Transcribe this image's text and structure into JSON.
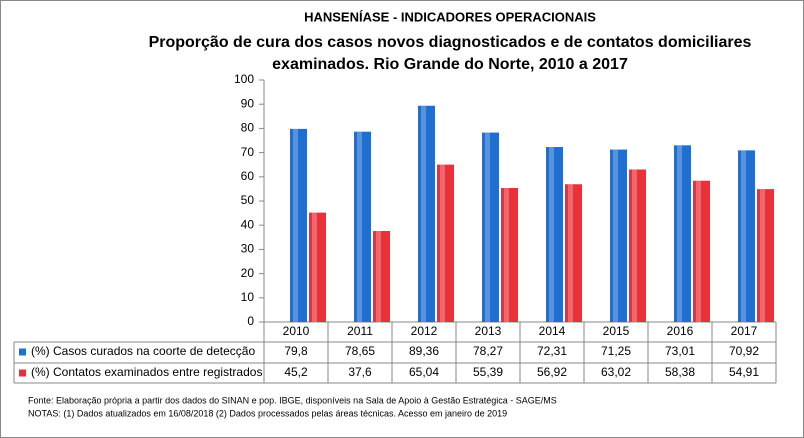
{
  "chart_data": {
    "type": "bar",
    "title": "HANSENÍASE - INDICADORES OPERACIONAIS",
    "subtitle": [
      "Proporção de cura dos casos novos diagnosticados e de contatos domiciliares",
      "examinados.  Rio Grande do Norte, 2010 a 2017"
    ],
    "categories": [
      "2010",
      "2011",
      "2012",
      "2013",
      "2014",
      "2015",
      "2016",
      "2017"
    ],
    "series": [
      {
        "name": "(%) Casos curados na coorte de detecção",
        "color": "#1f6fd0",
        "values": [
          79.8,
          78.65,
          89.36,
          78.27,
          72.31,
          71.25,
          73.01,
          70.92
        ],
        "value_labels": [
          "79,8",
          "78,65",
          "89,36",
          "78,27",
          "72,31",
          "71,25",
          "73,01",
          "70,92"
        ]
      },
      {
        "name": "(%) Contatos examinados entre registrados",
        "color": "#e8323a",
        "values": [
          45.2,
          37.6,
          65.04,
          55.39,
          56.92,
          63.02,
          58.38,
          54.91
        ],
        "value_labels": [
          "45,2",
          "37,6",
          "65,04",
          "55,39",
          "56,92",
          "63,02",
          "58,38",
          "54,91"
        ]
      }
    ],
    "ylim": [
      0,
      100
    ],
    "yticks": [
      0,
      10,
      20,
      30,
      40,
      50,
      60,
      70,
      80,
      90,
      100
    ],
    "grid": false,
    "notes": [
      "Fonte:  Elaboração própria a partir dos dados do  SINAN  e  pop. IBGE, disponíveis na Sala de Apoio à Gestão Estratégica  -  SAGE/MS",
      "NOTAS: (1) Dados atualizados em 16/08/2018 (2) Dados processados pelas áreas técnicas. Acesso em janeiro de 2019"
    ]
  }
}
